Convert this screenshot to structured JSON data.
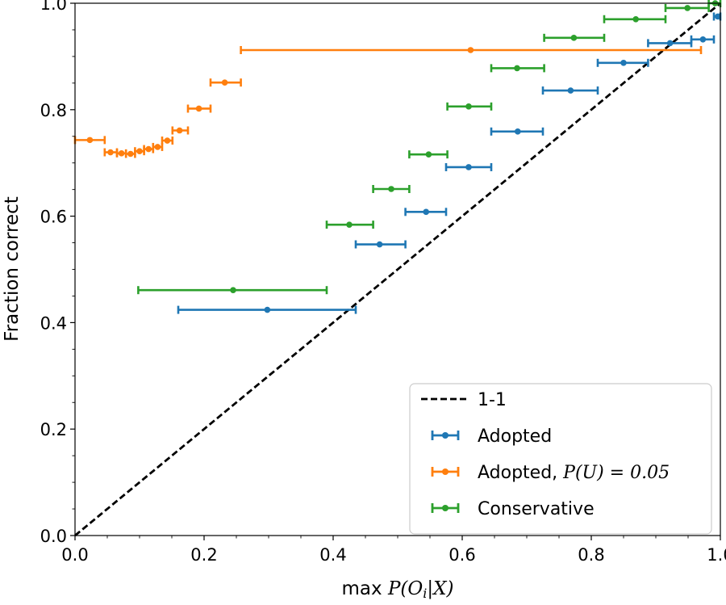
{
  "chart_data": {
    "type": "scatter",
    "title": "",
    "xlabel_prefix": "max",
    "xlabel_math": "P(O",
    "xlabel_sub": "i",
    "xlabel_math_end": "|X)",
    "ylabel": "Fraction correct",
    "xlim": [
      0.0,
      1.0
    ],
    "ylim": [
      0.0,
      1.0
    ],
    "x_ticks": [
      0.0,
      0.2,
      0.4,
      0.6,
      0.8,
      1.0
    ],
    "y_ticks": [
      0.0,
      0.2,
      0.4,
      0.6,
      0.8,
      1.0
    ],
    "x_tick_labels": [
      "0.0",
      "0.2",
      "0.4",
      "0.6",
      "0.8",
      "1.0"
    ],
    "y_tick_labels": [
      "0.0",
      "0.2",
      "0.4",
      "0.6",
      "0.8",
      "1.0"
    ],
    "grid": false,
    "legend_position": "lower-right",
    "reference_line": {
      "name": "1-1",
      "x": [
        0.0,
        1.0
      ],
      "y": [
        0.0,
        1.0
      ],
      "color": "#000000",
      "style": "dashed"
    },
    "series": [
      {
        "name": "Adopted",
        "color": "#1f77b4",
        "points": [
          {
            "x": 0.298,
            "y": 0.424,
            "xmin": 0.16,
            "xmax": 0.435
          },
          {
            "x": 0.472,
            "y": 0.547,
            "xmin": 0.435,
            "xmax": 0.512
          },
          {
            "x": 0.544,
            "y": 0.608,
            "xmin": 0.512,
            "xmax": 0.575
          },
          {
            "x": 0.61,
            "y": 0.692,
            "xmin": 0.575,
            "xmax": 0.645
          },
          {
            "x": 0.686,
            "y": 0.759,
            "xmin": 0.645,
            "xmax": 0.725
          },
          {
            "x": 0.768,
            "y": 0.836,
            "xmin": 0.725,
            "xmax": 0.81
          },
          {
            "x": 0.85,
            "y": 0.888,
            "xmin": 0.81,
            "xmax": 0.888
          },
          {
            "x": 0.922,
            "y": 0.925,
            "xmin": 0.888,
            "xmax": 0.955
          },
          {
            "x": 0.973,
            "y": 0.932,
            "xmin": 0.955,
            "xmax": 0.99
          },
          {
            "x": 0.996,
            "y": 0.975,
            "xmin": 0.99,
            "xmax": 1.0
          }
        ]
      },
      {
        "name": "Adopted, ",
        "name_math": "P(U) = 0.05",
        "color": "#ff7f0e",
        "points": [
          {
            "x": 0.023,
            "y": 0.743,
            "xmin": 0.0,
            "xmax": 0.046
          },
          {
            "x": 0.055,
            "y": 0.72,
            "xmin": 0.046,
            "xmax": 0.065
          },
          {
            "x": 0.072,
            "y": 0.718,
            "xmin": 0.065,
            "xmax": 0.079
          },
          {
            "x": 0.086,
            "y": 0.717,
            "xmin": 0.079,
            "xmax": 0.093
          },
          {
            "x": 0.1,
            "y": 0.722,
            "xmin": 0.093,
            "xmax": 0.107
          },
          {
            "x": 0.114,
            "y": 0.726,
            "xmin": 0.107,
            "xmax": 0.121
          },
          {
            "x": 0.128,
            "y": 0.73,
            "xmin": 0.121,
            "xmax": 0.135
          },
          {
            "x": 0.143,
            "y": 0.742,
            "xmin": 0.135,
            "xmax": 0.151
          },
          {
            "x": 0.162,
            "y": 0.761,
            "xmin": 0.151,
            "xmax": 0.175
          },
          {
            "x": 0.192,
            "y": 0.802,
            "xmin": 0.175,
            "xmax": 0.21
          },
          {
            "x": 0.232,
            "y": 0.851,
            "xmin": 0.21,
            "xmax": 0.257
          },
          {
            "x": 0.613,
            "y": 0.912,
            "xmin": 0.257,
            "xmax": 0.97
          }
        ]
      },
      {
        "name": "Conservative",
        "color": "#2ca02c",
        "points": [
          {
            "x": 0.245,
            "y": 0.461,
            "xmin": 0.098,
            "xmax": 0.39
          },
          {
            "x": 0.425,
            "y": 0.584,
            "xmin": 0.39,
            "xmax": 0.462
          },
          {
            "x": 0.49,
            "y": 0.651,
            "xmin": 0.462,
            "xmax": 0.518
          },
          {
            "x": 0.548,
            "y": 0.716,
            "xmin": 0.518,
            "xmax": 0.577
          },
          {
            "x": 0.61,
            "y": 0.806,
            "xmin": 0.577,
            "xmax": 0.645
          },
          {
            "x": 0.685,
            "y": 0.878,
            "xmin": 0.645,
            "xmax": 0.727
          },
          {
            "x": 0.773,
            "y": 0.935,
            "xmin": 0.727,
            "xmax": 0.82
          },
          {
            "x": 0.869,
            "y": 0.97,
            "xmin": 0.82,
            "xmax": 0.915
          },
          {
            "x": 0.949,
            "y": 0.991,
            "xmin": 0.915,
            "xmax": 0.982
          },
          {
            "x": 0.992,
            "y": 1.0,
            "xmin": 0.982,
            "xmax": 1.0
          }
        ]
      }
    ]
  }
}
